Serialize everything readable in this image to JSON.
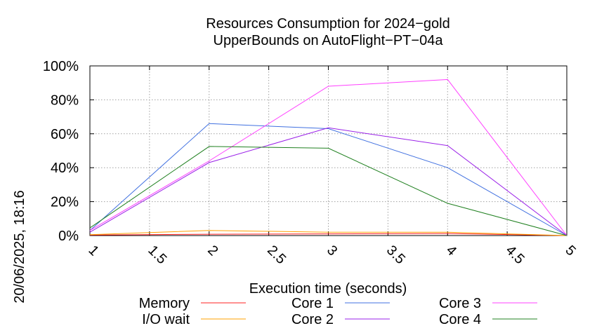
{
  "chart_data": {
    "type": "line",
    "title_line1": "Resources Consumption for 2024−gold",
    "title_line2": "UpperBounds on AutoFlight−PT−04a",
    "xlabel": "Execution time (seconds)",
    "ylabel": "",
    "side_label": "20/06/2025, 18:16",
    "xlim": [
      1,
      5
    ],
    "ylim": [
      0,
      100
    ],
    "x_ticks": [
      1,
      1.5,
      2,
      2.5,
      3,
      3.5,
      4,
      4.5,
      5
    ],
    "x_tick_labels": [
      "1",
      "1.5",
      "2",
      "2.5",
      "3",
      "3.5",
      "4",
      "4.5",
      "5"
    ],
    "y_ticks": [
      0,
      20,
      40,
      60,
      80,
      100
    ],
    "y_tick_labels": [
      "0%",
      "20%",
      "40%",
      "60%",
      "80%",
      "100%"
    ],
    "grid": true,
    "legend_position": "bottom",
    "x": [
      1,
      2,
      3,
      4,
      5
    ],
    "series": [
      {
        "name": "Memory",
        "color": "#ff2020",
        "values": [
          0.3,
          0.8,
          1.0,
          1.2,
          0
        ]
      },
      {
        "name": "I/O wait",
        "color": "#ffa000",
        "values": [
          0.5,
          3.0,
          2.0,
          2.0,
          0
        ]
      },
      {
        "name": "Core 1",
        "color": "#4070e0",
        "values": [
          3,
          66,
          63,
          40,
          0
        ]
      },
      {
        "name": "Core 2",
        "color": "#9a20e8",
        "values": [
          2,
          43,
          63.5,
          53,
          0
        ]
      },
      {
        "name": "Core 3",
        "color": "#ff40ff",
        "values": [
          3,
          44,
          88,
          92,
          0
        ]
      },
      {
        "name": "Core 4",
        "color": "#208020",
        "values": [
          4.5,
          52.5,
          51.5,
          19,
          0
        ]
      }
    ]
  }
}
